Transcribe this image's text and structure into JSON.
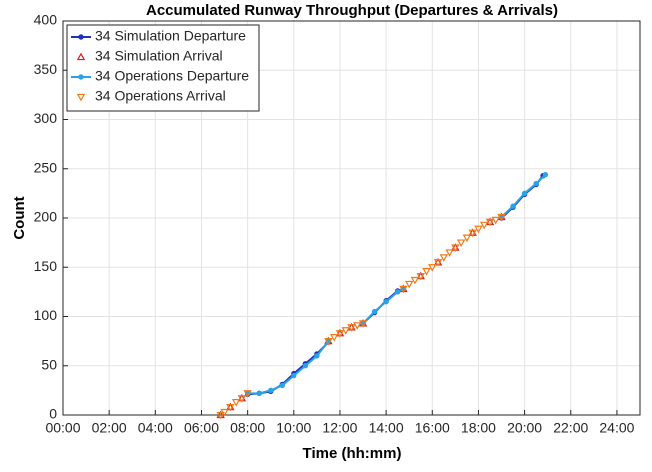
{
  "chart_data": {
    "type": "line",
    "title": "Accumulated Runway Throughput (Departures & Arrivals)",
    "x_label": "Time (hh:mm)",
    "y_label": "Count",
    "xlim": [
      0,
      25
    ],
    "ylim": [
      0,
      400
    ],
    "xticks": [
      {
        "value": 0,
        "label": "00:00"
      },
      {
        "value": 2,
        "label": "02:00"
      },
      {
        "value": 4,
        "label": "04:00"
      },
      {
        "value": 6,
        "label": "06:00"
      },
      {
        "value": 8,
        "label": "08:00"
      },
      {
        "value": 10,
        "label": "10:00"
      },
      {
        "value": 12,
        "label": "12:00"
      },
      {
        "value": 14,
        "label": "14:00"
      },
      {
        "value": 16,
        "label": "16:00"
      },
      {
        "value": 18,
        "label": "18:00"
      },
      {
        "value": 20,
        "label": "20:00"
      },
      {
        "value": 22,
        "label": "22:00"
      },
      {
        "value": 24,
        "label": "24:00"
      }
    ],
    "yticks": [
      0,
      50,
      100,
      150,
      200,
      250,
      300,
      350,
      400
    ],
    "grid": true,
    "legend": "top-left",
    "series": [
      {
        "name": "34 Simulation Departure",
        "color": "#1f2fbf",
        "line": true,
        "marker": "circle",
        "x": [
          8.0,
          8.5,
          9.0,
          9.5,
          10.0,
          10.5,
          11.0,
          11.5,
          null,
          13.0,
          13.5,
          14.0,
          14.5,
          14.75,
          null,
          19.0,
          19.5,
          20.0,
          20.5,
          20.8
        ],
        "values": [
          21,
          22,
          24,
          31,
          42,
          52,
          62,
          74,
          null,
          93,
          104,
          116,
          126,
          128,
          null,
          200,
          211,
          224,
          234,
          243
        ]
      },
      {
        "name": "34 Simulation Arrival",
        "color": "#d62020",
        "line": false,
        "marker": "triangle-up",
        "x": [
          6.83,
          7.25,
          7.75,
          11.5,
          12.0,
          12.5,
          13.0,
          14.75,
          15.5,
          16.25,
          17.0,
          17.75,
          18.5,
          19.0
        ],
        "values": [
          0,
          8,
          17,
          75,
          83,
          89,
          93,
          128,
          141,
          155,
          170,
          185,
          196,
          201
        ]
      },
      {
        "name": "34 Operations Departure",
        "color": "#29a3e6",
        "line": true,
        "marker": "circle",
        "x": [
          8.0,
          8.5,
          9.0,
          9.5,
          10.0,
          10.5,
          11.0,
          11.5,
          null,
          13.0,
          13.5,
          14.0,
          14.5,
          14.75,
          null,
          19.0,
          19.5,
          20.0,
          20.5,
          20.9
        ],
        "values": [
          22,
          22,
          25,
          30,
          40,
          50,
          60,
          75,
          null,
          93,
          105,
          115,
          125,
          128,
          null,
          201,
          212,
          225,
          235,
          244
        ]
      },
      {
        "name": "34 Operations Arrival",
        "color": "#f07a1a",
        "line": false,
        "marker": "triangle-down",
        "x": [
          6.83,
          7.0,
          7.25,
          7.5,
          7.75,
          8.0,
          11.5,
          11.75,
          12.0,
          12.25,
          12.5,
          12.75,
          13.0,
          14.75,
          15.0,
          15.25,
          15.5,
          15.75,
          16.0,
          16.25,
          16.5,
          16.75,
          17.0,
          17.25,
          17.5,
          17.75,
          18.0,
          18.25,
          18.5,
          18.75,
          19.0
        ],
        "values": [
          0,
          3,
          8,
          13,
          17,
          22,
          75,
          79,
          83,
          86,
          89,
          91,
          93,
          128,
          133,
          137,
          141,
          146,
          150,
          155,
          160,
          165,
          170,
          175,
          180,
          185,
          189,
          193,
          196,
          198,
          201
        ]
      }
    ]
  }
}
